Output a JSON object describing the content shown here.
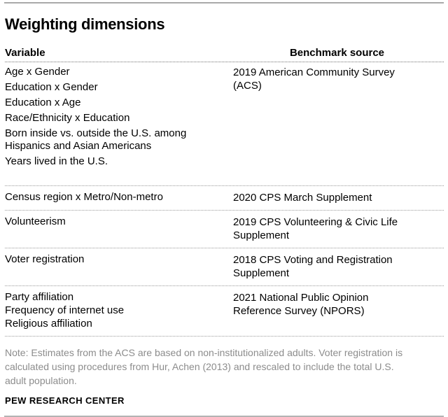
{
  "header": {
    "title": "Weighting dimensions"
  },
  "table": {
    "headers": [
      "Variable",
      "Benchmark source"
    ],
    "rows": [
      {
        "variables": [
          "Age x Gender",
          "Education x Gender",
          "Education x Age",
          "Race/Ethnicity x Education",
          "Born inside vs. outside the U.S. among\nHispanics and Asian Americans",
          "Years lived in the U.S."
        ],
        "benchmark": "2019 American Community Survey\n(ACS)"
      },
      {
        "variables": [
          "Census region x Metro/Non-metro"
        ],
        "benchmark": "2020 CPS March Supplement"
      },
      {
        "variables": [
          "Volunteerism"
        ],
        "benchmark": "2019 CPS Volunteering & Civic Life\nSupplement"
      },
      {
        "variables": [
          "Voter registration"
        ],
        "benchmark": "2018 CPS Voting and Registration\nSupplement"
      },
      {
        "variables": [
          "Party affiliation",
          "Frequency of internet use",
          "Religious affiliation"
        ],
        "benchmark": "2021 National Public Opinion\nReference Survey (NPORS)"
      }
    ]
  },
  "note": {
    "text": "Note: Estimates from the ACS are based on non-institutionalized adults. Voter registration is\ncalculated using procedures from Hur, Achen (2013) and rescaled to include the total U.S.\nadult population.",
    "attribution": "PEW RESEARCH CENTER"
  },
  "colors": {
    "text": "#000000",
    "note_text": "#8c8c8c",
    "rule": "#a9a9a9",
    "divider": "#9a9a9a"
  }
}
